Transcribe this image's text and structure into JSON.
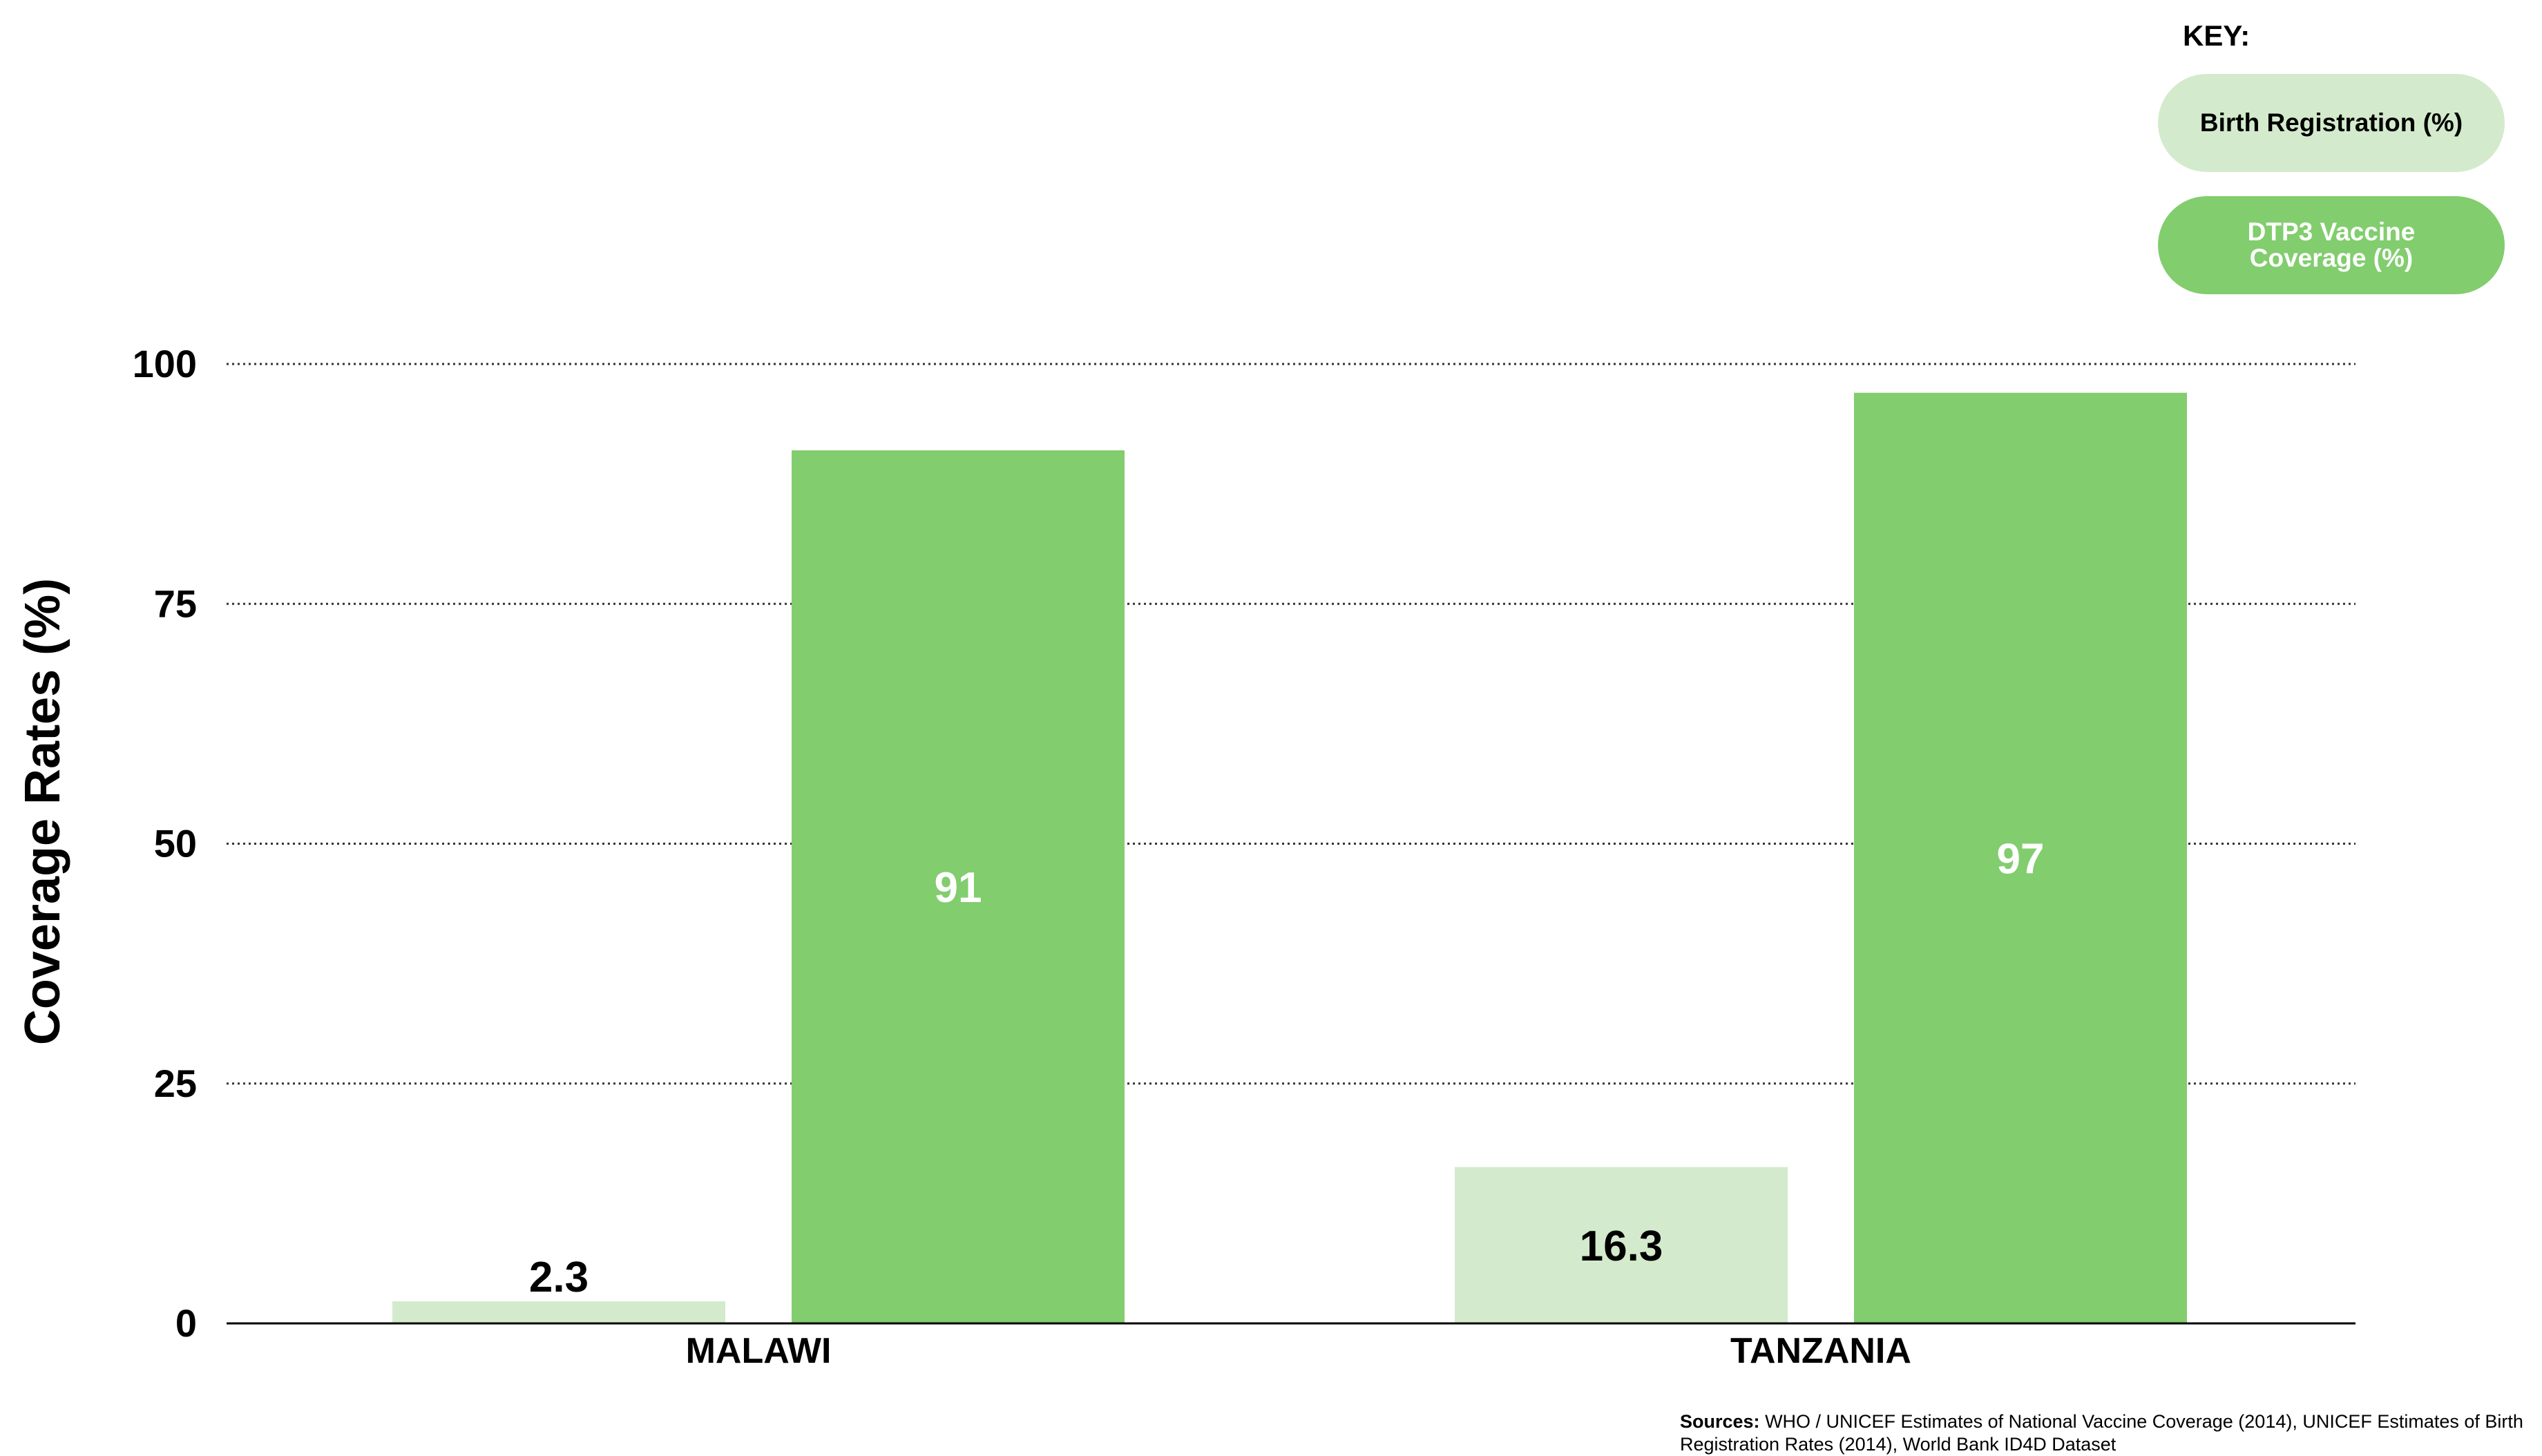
{
  "chart_data": {
    "type": "bar",
    "categories": [
      "MALAWI",
      "TANZANIA"
    ],
    "series": [
      {
        "name": "Birth Registration (%)",
        "values": [
          2.3,
          16.3
        ],
        "color": "#d3ebcc",
        "label_color": "#000000"
      },
      {
        "name": "DTP3 Vaccine Coverage (%)",
        "values": [
          91,
          97
        ],
        "color": "#82cd6e",
        "label_color": "#ffffff"
      }
    ],
    "ylabel": "Coverage Rates (%)",
    "ylim": [
      0,
      100
    ],
    "yticks": [
      "0",
      "25",
      "50",
      "75",
      "100"
    ],
    "grid": "dotted horizontal",
    "legend_position": "top-right"
  },
  "key": {
    "heading": "KEY:",
    "items": [
      {
        "label": "Birth Registration (%)"
      },
      {
        "label": "DTP3 Vaccine Coverage (%)"
      }
    ]
  },
  "sources": {
    "prefix": "Sources:",
    "text": "WHO / UNICEF Estimates of National Vaccine Coverage (2014), UNICEF Estimates of Birth Registration Rates (2014), World Bank ID4D Dataset"
  }
}
